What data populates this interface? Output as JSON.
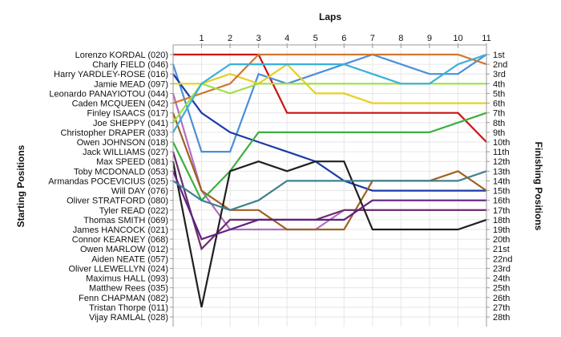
{
  "chart_data": {
    "type": "line",
    "title": "Laps",
    "left_label": "Starting Positions",
    "right_label": "Finishing Positions",
    "laps": [
      1,
      2,
      3,
      4,
      5,
      6,
      7,
      8,
      9,
      10,
      11
    ],
    "finish_labels": [
      "1st",
      "2nd",
      "3rd",
      "4th",
      "5th",
      "6th",
      "7th",
      "8th",
      "9th",
      "10th",
      "11th",
      "12th",
      "13th",
      "14th",
      "15th",
      "16th",
      "17th",
      "18th",
      "19th",
      "20th",
      "21st",
      "22nd",
      "23rd",
      "24th",
      "25th",
      "26th",
      "27th",
      "28th"
    ],
    "grid": true,
    "series": [
      {
        "name": "Lorenzo KORDAL (020)",
        "color": "#cc1111",
        "positions": [
          1,
          1,
          1,
          1,
          7,
          7,
          7,
          7,
          7,
          7,
          7,
          10
        ]
      },
      {
        "name": "Charly FIELD (046)",
        "color": "#4a90d9",
        "positions": [
          2,
          11,
          11,
          3,
          4,
          3,
          2,
          1,
          2,
          3,
          3,
          1
        ]
      },
      {
        "name": "Harry YARDLEY-ROSE (016)",
        "color": "#1a3aa8",
        "positions": [
          3,
          7,
          9,
          10,
          11,
          12,
          14,
          15,
          15,
          15,
          15,
          15
        ]
      },
      {
        "name": "Jamie MEAD (097)",
        "color": "#e8d020",
        "positions": [
          4,
          4,
          3,
          4,
          2,
          5,
          5,
          6,
          6,
          6,
          6,
          6
        ]
      },
      {
        "name": "Leonardo PANAYIOTOU (044)",
        "color": "#b070c0",
        "positions": [
          5,
          15,
          19,
          19,
          19,
          19,
          17,
          17,
          17,
          17,
          17,
          17
        ]
      },
      {
        "name": "Caden MCQUEEN (042)",
        "color": "#d07830",
        "positions": [
          6,
          5,
          4,
          1,
          1,
          1,
          1,
          1,
          1,
          1,
          1,
          2
        ]
      },
      {
        "name": "Finley ISAACS (017)",
        "color": "#a06020",
        "positions": [
          7,
          15,
          17,
          17,
          19,
          19,
          19,
          14,
          14,
          14,
          13,
          15
        ]
      },
      {
        "name": "Joe SHEPPY (041)",
        "color": "#a0e040",
        "positions": [
          8,
          4,
          5,
          4,
          4,
          4,
          4,
          4,
          4,
          4,
          4,
          4
        ]
      },
      {
        "name": "Christopher DRAPER (033)",
        "color": "#3ab0d8",
        "positions": [
          9,
          4,
          2,
          2,
          2,
          2,
          2,
          3,
          4,
          4,
          2,
          1
        ]
      },
      {
        "name": "Owen JOHNSON (018)",
        "color": "#3cb040",
        "positions": [
          10,
          16,
          13,
          9,
          9,
          9,
          9,
          9,
          9,
          9,
          8,
          7
        ]
      },
      {
        "name": "Jack WILLIAMS (027)",
        "color": "#6b2e6b",
        "positions": [
          11,
          21,
          18,
          18,
          18,
          18,
          17,
          17,
          17,
          17,
          17,
          17
        ]
      },
      {
        "name": "Max SPEED (081)",
        "color": "#202020",
        "positions": [
          12,
          27,
          13,
          12,
          13,
          12,
          12,
          19,
          19,
          19,
          19,
          18
        ]
      },
      {
        "name": "Toby MCDONALD (053)",
        "color": "#602080",
        "positions": [
          13,
          20,
          19,
          18,
          18,
          18,
          18,
          16,
          16,
          16,
          16,
          16
        ]
      },
      {
        "name": "Armandas POCEVICIUS (025)",
        "color": "#408090",
        "positions": [
          14,
          16,
          17,
          16,
          14,
          14,
          14,
          14,
          14,
          14,
          14,
          13
        ]
      }
    ],
    "start_labels": [
      "Lorenzo KORDAL (020)",
      "Charly FIELD (046)",
      "Harry YARDLEY-ROSE (016)",
      "Jamie MEAD (097)",
      "Leonardo PANAYIOTOU (044)",
      "Caden MCQUEEN (042)",
      "Finley ISAACS (017)",
      "Joe SHEPPY (041)",
      "Christopher DRAPER (033)",
      "Owen JOHNSON (018)",
      "Jack WILLIAMS (027)",
      "Max SPEED (081)",
      "Toby MCDONALD (053)",
      "Armandas POCEVICIUS (025)",
      "Will DAY (076)",
      "Oliver STRATFORD (080)",
      "Tyler READ (022)",
      "Thomas SMITH (069)",
      "James HANCOCK (021)",
      "Connor KEARNEY (068)",
      "Owen MARLOW (012)",
      "Aiden NEATE (057)",
      "Oliver LLEWELLYN (024)",
      "Maximus HALL (093)",
      "Matthew Rees (035)",
      "Fenn CHAPMAN (082)",
      "Tristan Thorpe (011)",
      "Vijay RAMLAL (028)"
    ]
  }
}
